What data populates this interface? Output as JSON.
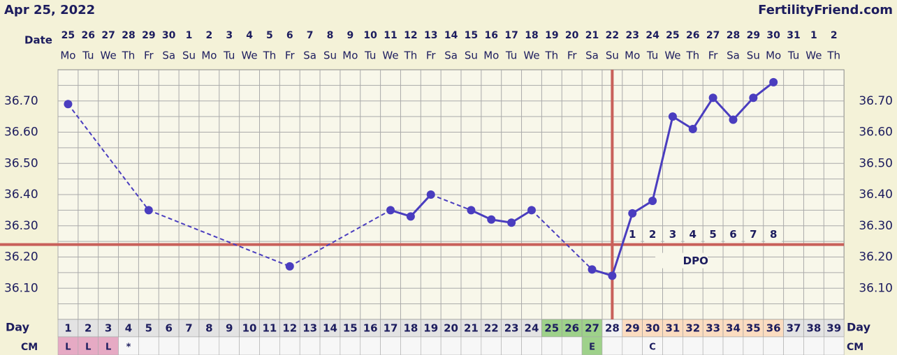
{
  "chart_data": {
    "type": "line",
    "title": "Apr 25, 2022",
    "site": "FertilityFriend.com",
    "date_axis_label": "Date",
    "day_axis_label": "Day",
    "cm_axis_label": "CM",
    "dpo_label": "DPO",
    "dates": [
      "25",
      "26",
      "27",
      "28",
      "29",
      "30",
      "1",
      "2",
      "3",
      "4",
      "5",
      "6",
      "7",
      "8",
      "9",
      "10",
      "11",
      "12",
      "13",
      "14",
      "15",
      "16",
      "17",
      "18",
      "19",
      "20",
      "21",
      "22",
      "23",
      "24",
      "25",
      "26",
      "27",
      "28",
      "29",
      "30",
      "31",
      "1",
      "2"
    ],
    "weekdays": [
      "Mo",
      "Tu",
      "We",
      "Th",
      "Fr",
      "Sa",
      "Su",
      "Mo",
      "Tu",
      "We",
      "Th",
      "Fr",
      "Sa",
      "Su",
      "Mo",
      "Tu",
      "We",
      "Th",
      "Fr",
      "Sa",
      "Su",
      "Mo",
      "Tu",
      "We",
      "Th",
      "Fr",
      "Sa",
      "Su",
      "Mo",
      "Tu",
      "We",
      "Th",
      "Fr",
      "Sa",
      "Su",
      "Mo",
      "Tu",
      "We",
      "Th"
    ],
    "x": [
      1,
      2,
      3,
      4,
      5,
      6,
      7,
      8,
      9,
      10,
      11,
      12,
      13,
      14,
      15,
      16,
      17,
      18,
      19,
      20,
      21,
      22,
      23,
      24,
      25,
      26,
      27,
      28,
      29,
      30,
      31,
      32,
      33,
      34,
      35,
      36,
      37,
      38,
      39
    ],
    "series": [
      {
        "name": "Temperature",
        "color": "#4a3dbf",
        "values": [
          36.69,
          null,
          null,
          null,
          36.35,
          null,
          null,
          null,
          null,
          null,
          null,
          36.17,
          null,
          null,
          null,
          null,
          36.35,
          36.33,
          36.4,
          null,
          36.35,
          36.32,
          36.31,
          36.35,
          null,
          null,
          36.16,
          36.14,
          36.34,
          36.38,
          36.65,
          36.61,
          36.71,
          36.64,
          36.71,
          36.76,
          null,
          null,
          null
        ]
      }
    ],
    "cm": [
      "L",
      "L",
      "L",
      "*",
      null,
      null,
      null,
      null,
      null,
      null,
      null,
      null,
      null,
      null,
      null,
      null,
      null,
      null,
      null,
      null,
      null,
      null,
      null,
      null,
      null,
      null,
      "E",
      null,
      null,
      "C",
      null,
      null,
      null,
      null,
      null,
      null,
      null,
      null,
      null
    ],
    "fertile_days": [
      25,
      26,
      27
    ],
    "luteal_days": [
      29,
      30,
      31,
      32,
      33,
      34,
      35,
      36
    ],
    "menses_days": [
      1,
      2,
      3
    ],
    "coverline": 36.24,
    "ovulation_day": 28,
    "dpo": [
      1,
      2,
      3,
      4,
      5,
      6,
      7,
      8
    ],
    "line_color_marker": "#c8605a",
    "ylim": [
      36.0,
      36.8
    ],
    "yticks": [
      {
        "value": 36.1,
        "label": "36.10"
      },
      {
        "value": 36.2,
        "label": "36.20"
      },
      {
        "value": 36.3,
        "label": "36.30"
      },
      {
        "value": 36.4,
        "label": "36.40"
      },
      {
        "value": 36.5,
        "label": "36.50"
      },
      {
        "value": 36.6,
        "label": "36.60"
      },
      {
        "value": 36.7,
        "label": "36.70"
      }
    ],
    "minor_yticks": [
      36.05,
      36.15,
      36.25,
      36.35,
      36.45,
      36.55,
      36.65,
      36.75
    ],
    "grid": true
  }
}
